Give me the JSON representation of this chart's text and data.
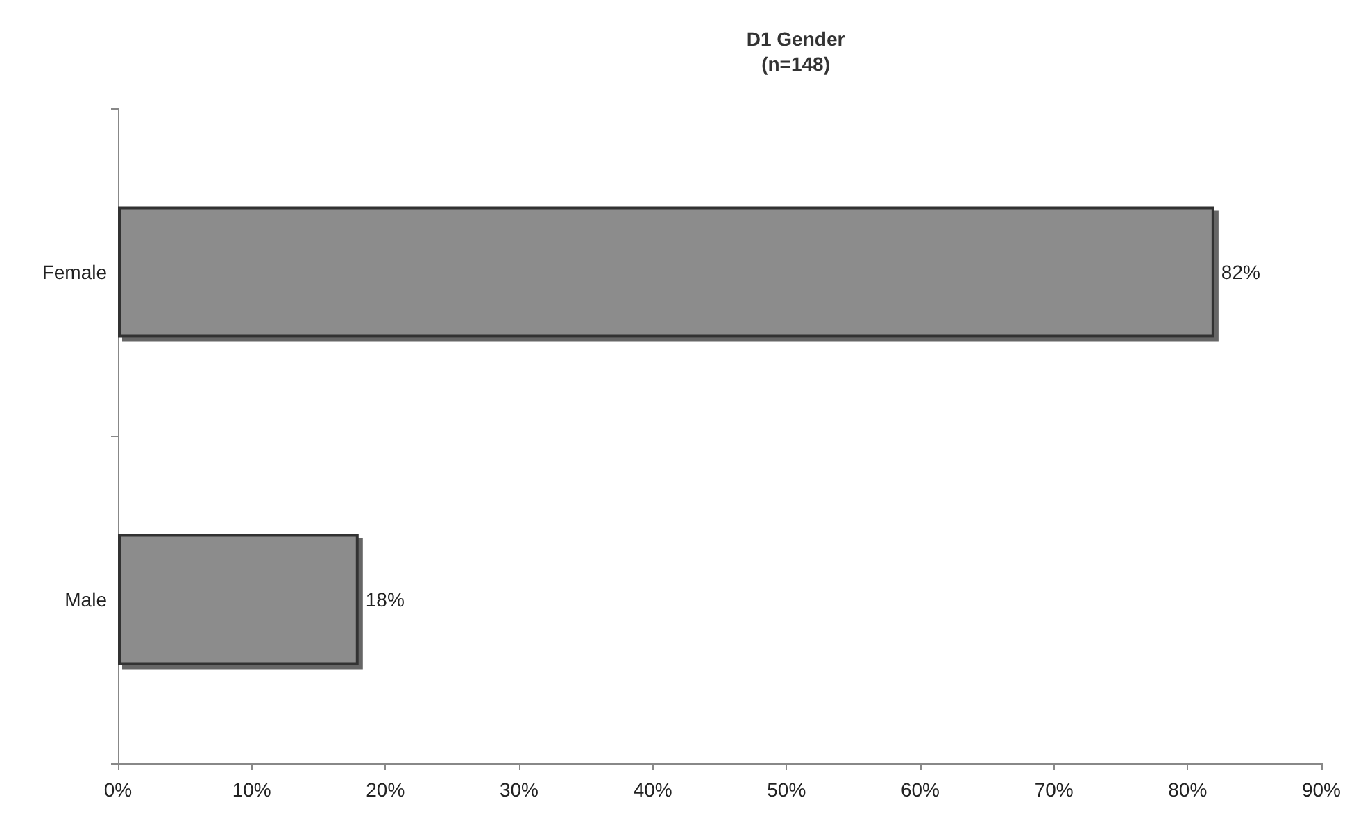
{
  "chart_data": {
    "type": "bar",
    "orientation": "horizontal",
    "title": "D1 Gender",
    "subtitle": "(n=148)",
    "categories": [
      "Female",
      "Male"
    ],
    "values": [
      82,
      18
    ],
    "value_labels": [
      "82%",
      "18%"
    ],
    "color": "#8c8c8c",
    "xlim": [
      0,
      90
    ],
    "xticks": [
      {
        "value": 0,
        "label": "0%"
      },
      {
        "value": 10,
        "label": "10%"
      },
      {
        "value": 20,
        "label": "20%"
      },
      {
        "value": 30,
        "label": "30%"
      },
      {
        "value": 40,
        "label": "40%"
      },
      {
        "value": 50,
        "label": "50%"
      },
      {
        "value": 60,
        "label": "60%"
      },
      {
        "value": 70,
        "label": "70%"
      },
      {
        "value": 80,
        "label": "80%"
      },
      {
        "value": 90,
        "label": "90%"
      }
    ],
    "grid": false
  }
}
